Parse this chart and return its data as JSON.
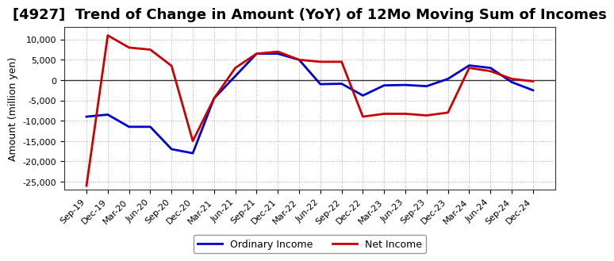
{
  "title": "[4927]  Trend of Change in Amount (YoY) of 12Mo Moving Sum of Incomes",
  "ylabel": "Amount (million yen)",
  "background_color": "#ffffff",
  "plot_bg_color": "#ffffff",
  "grid_color": "#aaaaaa",
  "x_labels": [
    "Sep-19",
    "Dec-19",
    "Mar-20",
    "Jun-20",
    "Sep-20",
    "Dec-20",
    "Mar-21",
    "Jun-21",
    "Sep-21",
    "Dec-21",
    "Mar-22",
    "Jun-22",
    "Sep-22",
    "Dec-22",
    "Mar-23",
    "Jun-23",
    "Sep-23",
    "Dec-23",
    "Mar-24",
    "Jun-24",
    "Sep-24",
    "Dec-24"
  ],
  "ordinary_income": [
    -9000,
    -8500,
    -11500,
    -11500,
    -17000,
    -18000,
    -4500,
    1000,
    6500,
    6500,
    5000,
    -1000,
    -900,
    -3800,
    -1300,
    -1200,
    -1500,
    300,
    3600,
    3000,
    -500,
    -2500
  ],
  "net_income": [
    -26000,
    11000,
    8000,
    7500,
    3500,
    -15000,
    -4500,
    3000,
    6500,
    7000,
    5000,
    4500,
    4500,
    -9000,
    -8300,
    -8300,
    -8700,
    -8000,
    3000,
    2200,
    300,
    -300
  ],
  "ylim": [
    -27000,
    13000
  ],
  "yticks": [
    -25000,
    -20000,
    -15000,
    -10000,
    -5000,
    0,
    5000,
    10000
  ],
  "line_color_ordinary": "#0000cc",
  "line_color_net": "#cc0000",
  "line_width": 2.0,
  "title_fontsize": 13,
  "legend_labels": [
    "Ordinary Income",
    "Net Income"
  ]
}
